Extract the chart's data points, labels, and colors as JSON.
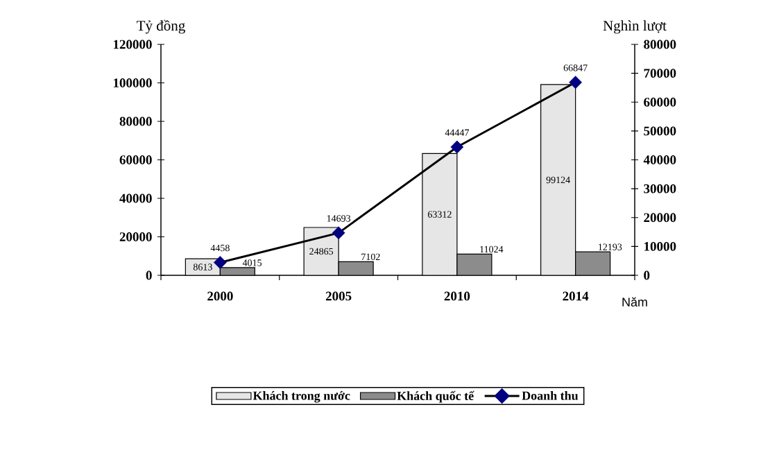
{
  "chart_data": {
    "type": "bar",
    "xlabel": "Năm",
    "ylabel": "Tỷ đồng",
    "y2label": "Nghìn lượt",
    "categories": [
      "2000",
      "2005",
      "2010",
      "2014"
    ],
    "series": [
      {
        "name": "Khách trong nước",
        "color": "#e6e6e6",
        "values": [
          8613,
          24865,
          63312,
          99124
        ]
      },
      {
        "name": "Khách quốc tế",
        "color": "#8c8c8c",
        "values": [
          4015,
          7102,
          11024,
          12193
        ]
      },
      {
        "name": "Doanh thu",
        "type": "line",
        "axis": "y2",
        "color": "#000000",
        "colors": [
          "#000080",
          "#000080",
          "#000080",
          "#000080"
        ],
        "marker": "diamond",
        "values": [
          4458,
          14693,
          44447,
          66847
        ]
      }
    ],
    "ylim": [
      0,
      120000
    ],
    "yticks": [
      0,
      20000,
      40000,
      60000,
      80000,
      100000,
      120000
    ],
    "y2lim": [
      0,
      80000
    ],
    "y2ticks": [
      0,
      10000,
      20000,
      30000,
      40000,
      50000,
      60000,
      70000,
      80000
    ],
    "data_labels": true,
    "legend": "bottom"
  }
}
